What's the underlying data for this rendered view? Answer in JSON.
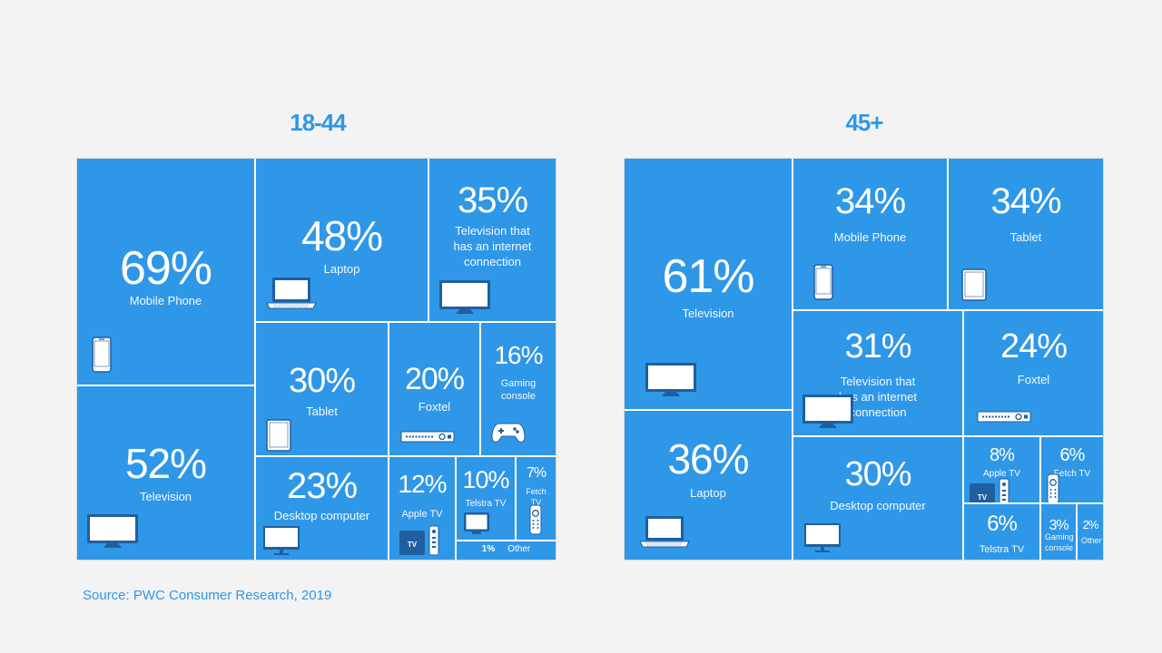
{
  "source": "Source: PWC Consumer Research, 2019",
  "chart_data": [
    {
      "type": "treemap",
      "title": "18-44",
      "color": "#2f97e8",
      "items": [
        {
          "label": "Mobile Phone",
          "value": 69,
          "pct_text": "69%"
        },
        {
          "label": "Television",
          "value": 52,
          "pct_text": "52%"
        },
        {
          "label": "Laptop",
          "value": 48,
          "pct_text": "48%"
        },
        {
          "label": "Television that has an internet connection",
          "value": 35,
          "pct_text": "35%"
        },
        {
          "label": "Tablet",
          "value": 30,
          "pct_text": "30%"
        },
        {
          "label": "Foxtel",
          "value": 20,
          "pct_text": "20%"
        },
        {
          "label": "Gaming console",
          "value": 16,
          "pct_text": "16%"
        },
        {
          "label": "Desktop computer",
          "value": 23,
          "pct_text": "23%"
        },
        {
          "label": "Apple TV",
          "value": 12,
          "pct_text": "12%"
        },
        {
          "label": "Telstra TV",
          "value": 10,
          "pct_text": "10%"
        },
        {
          "label": "Fetch TV",
          "value": 7,
          "pct_text": "7%"
        },
        {
          "label": "Other",
          "value": 1,
          "pct_text": "1%"
        }
      ]
    },
    {
      "type": "treemap",
      "title": "45+",
      "color": "#2f97e8",
      "items": [
        {
          "label": "Television",
          "value": 61,
          "pct_text": "61%"
        },
        {
          "label": "Laptop",
          "value": 36,
          "pct_text": "36%"
        },
        {
          "label": "Mobile Phone",
          "value": 34,
          "pct_text": "34%"
        },
        {
          "label": "Tablet",
          "value": 34,
          "pct_text": "34%"
        },
        {
          "label": "Television that has an internet connection",
          "value": 31,
          "pct_text": "31%"
        },
        {
          "label": "Foxtel",
          "value": 24,
          "pct_text": "24%"
        },
        {
          "label": "Desktop computer",
          "value": 30,
          "pct_text": "30%"
        },
        {
          "label": "Apple TV",
          "value": 8,
          "pct_text": "8%"
        },
        {
          "label": "Fetch TV",
          "value": 6,
          "pct_text": "6%"
        },
        {
          "label": "Telstra TV",
          "value": 6,
          "pct_text": "6%"
        },
        {
          "label": "Gaming console",
          "value": 3,
          "pct_text": "3%"
        },
        {
          "label": "Other",
          "value": 2,
          "pct_text": "2%"
        }
      ]
    }
  ]
}
